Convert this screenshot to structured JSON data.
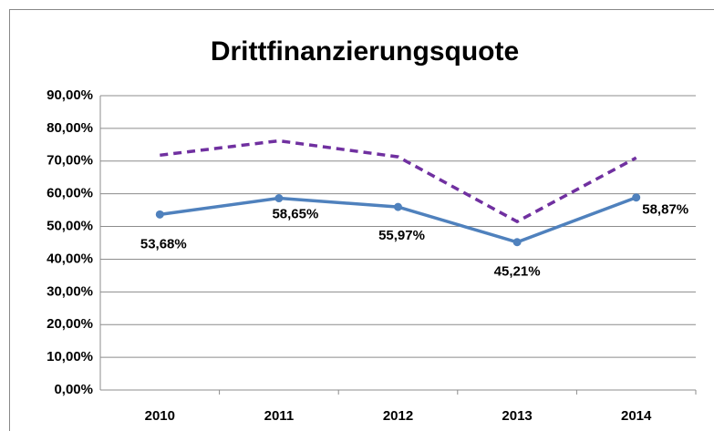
{
  "chart_data": {
    "type": "line",
    "title": "Drittfinanzierungsquote",
    "categories": [
      "2010",
      "2011",
      "2012",
      "2013",
      "2014"
    ],
    "series": [
      {
        "color": "#4f81bd",
        "style": "solid",
        "marker": true,
        "values": [
          53.68,
          58.65,
          55.97,
          45.21,
          58.87
        ],
        "value_labels": [
          "53,68%",
          "58,65%",
          "55,97%",
          "45,21%",
          "58,87%"
        ]
      },
      {
        "color": "#7030a0",
        "style": "dashed",
        "marker": false,
        "values": [
          71.8,
          76.2,
          71.3,
          51.5,
          71.0
        ]
      }
    ],
    "ylim": [
      0,
      90
    ],
    "yticks": [
      {
        "value": 0,
        "label": "0,00%"
      },
      {
        "value": 10,
        "label": "10,00%"
      },
      {
        "value": 20,
        "label": "20,00%"
      },
      {
        "value": 30,
        "label": "30,00%"
      },
      {
        "value": 40,
        "label": "40,00%"
      },
      {
        "value": 50,
        "label": "50,00%"
      },
      {
        "value": 60,
        "label": "60,00%"
      },
      {
        "value": 70,
        "label": "70,00%"
      },
      {
        "value": 80,
        "label": "80,00%"
      },
      {
        "value": 90,
        "label": "90,00%"
      }
    ],
    "grid": true
  }
}
